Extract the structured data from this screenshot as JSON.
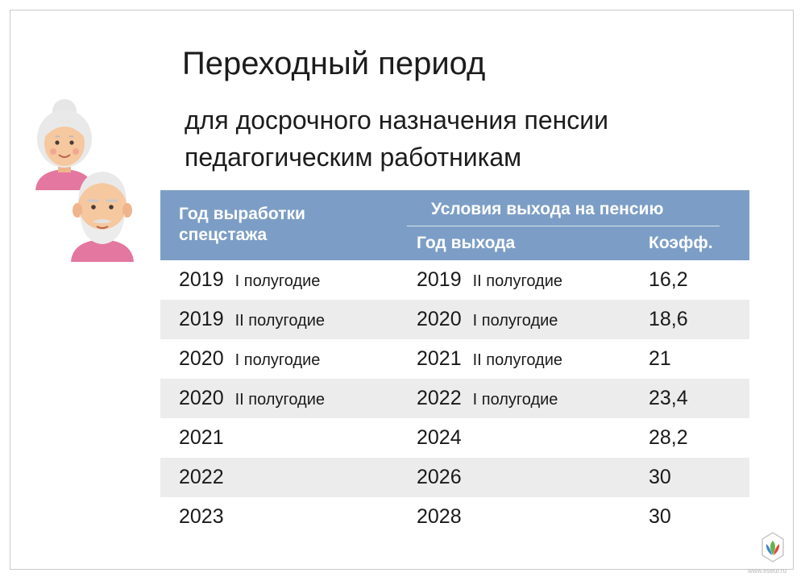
{
  "title": "Переходный период",
  "subtitle": {
    "line1": "для досрочного назначения пенсии",
    "line2": "педагогическим работникам"
  },
  "table": {
    "header": {
      "year_col": "Год выработки спецстажа",
      "conditions": "Условия выхода на пенсию",
      "exit_col": "Год выхода",
      "coef_col": "Коэфф."
    },
    "rows": [
      {
        "year": "2019",
        "year_half": "I полугодие",
        "exit": "2019",
        "exit_half": "II полугодие",
        "coef": "16,2"
      },
      {
        "year": "2019",
        "year_half": "II полугодие",
        "exit": "2020",
        "exit_half": "I полугодие",
        "coef": "18,6"
      },
      {
        "year": "2020",
        "year_half": "I полугодие",
        "exit": "2021",
        "exit_half": "II полугодие",
        "coef": "21"
      },
      {
        "year": "2020",
        "year_half": "II полугодие",
        "exit": "2022",
        "exit_half": "I полугодие",
        "coef": "23,4"
      },
      {
        "year": "2021",
        "year_half": "",
        "exit": "2024",
        "exit_half": "",
        "coef": "28,2"
      },
      {
        "year": "2022",
        "year_half": "",
        "exit": "2026",
        "exit_half": "",
        "coef": "30"
      },
      {
        "year": "2023",
        "year_half": "",
        "exit": "2028",
        "exit_half": "",
        "coef": "30"
      }
    ]
  },
  "colors": {
    "header_bg": "#7c9ec6",
    "header_text": "#ffffff",
    "row_alt": "#ececec"
  },
  "icons": {
    "grandmother": "grandmother-avatar-icon",
    "grandfather": "grandfather-avatar-icon",
    "logo": "union-logo-icon"
  },
  "watermark": "www.eseur.ru"
}
